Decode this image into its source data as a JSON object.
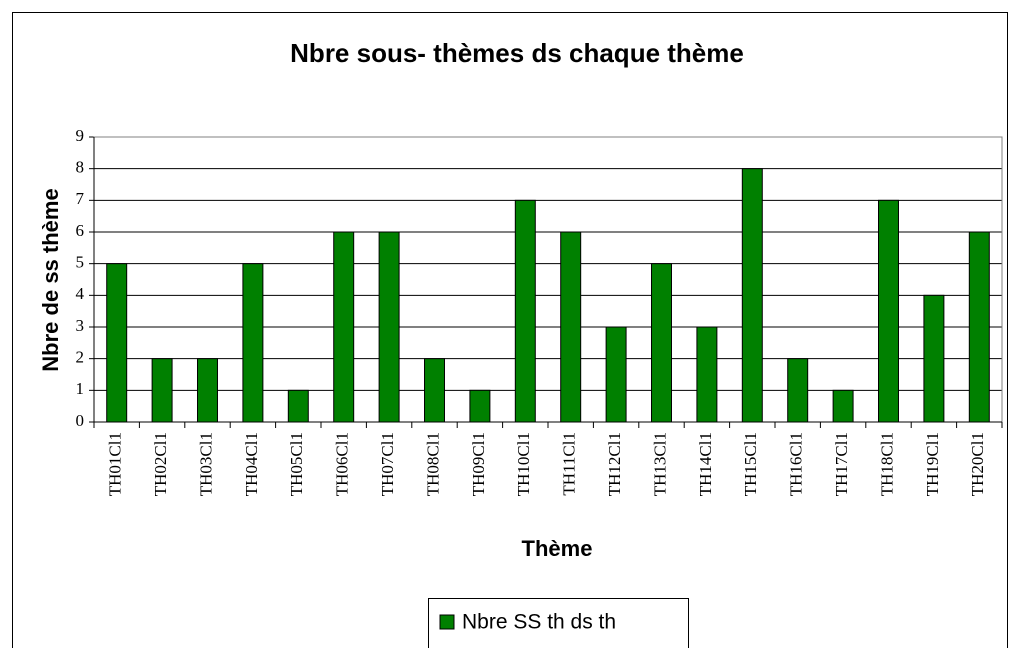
{
  "chart_data": {
    "type": "bar",
    "title": "Nbre sous- thèmes ds chaque thème",
    "x_label": "Thème",
    "y_label": "Nbre de ss thème",
    "categories": [
      "TH01Cl1",
      "TH02Cl1",
      "TH03Cl1",
      "TH04Cl1",
      "TH05Cl1",
      "TH06Cl1",
      "TH07Cl1",
      "TH08Cl1",
      "TH09Cl1",
      "TH10Cl1",
      "TH11Cl1",
      "TH12Cl1",
      "TH13Cl1",
      "TH14Cl1",
      "TH15Cl1",
      "TH16Cl1",
      "TH17Cl1",
      "TH18Cl1",
      "TH19Cl1",
      "TH20Cl1"
    ],
    "series": [
      {
        "name": "Nbre SS th ds th",
        "color": "#008000",
        "values": [
          5,
          2,
          2,
          5,
          1,
          6,
          6,
          2,
          1,
          7,
          6,
          3,
          5,
          3,
          8,
          2,
          1,
          7,
          4,
          6
        ]
      }
    ],
    "ylim": [
      0,
      9
    ],
    "yticks": [
      0,
      1,
      2,
      3,
      4,
      5,
      6,
      7,
      8,
      9
    ],
    "grid": true,
    "legend": "bottom"
  }
}
